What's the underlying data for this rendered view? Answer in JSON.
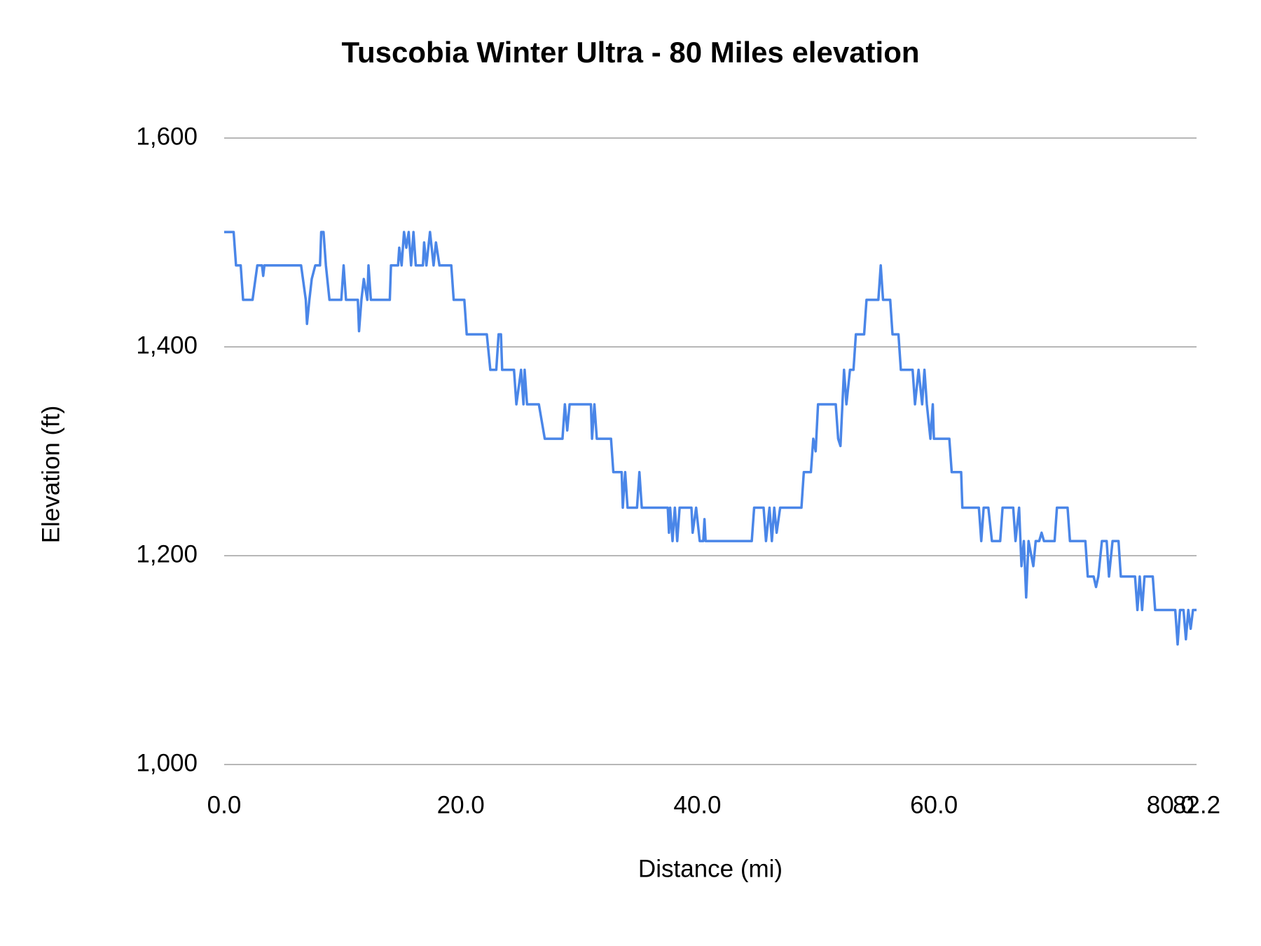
{
  "chart_data": {
    "type": "line",
    "title": "Tuscobia Winter Ultra - 80 Miles elevation",
    "x_label": "Distance (mi)",
    "y_label": "Elevation (ft)",
    "color": "#4a86e8",
    "grid": true,
    "xlim": [
      0,
      82.2
    ],
    "xticks": [
      {
        "value": 0,
        "label": "0.0"
      },
      {
        "value": 20,
        "label": "20.0"
      },
      {
        "value": 40,
        "label": "40.0"
      },
      {
        "value": 60,
        "label": "60.0"
      },
      {
        "value": 80,
        "label": "80.0"
      },
      {
        "value": 82.2,
        "label": "82.2"
      }
    ],
    "ylim": [
      1000,
      1600
    ],
    "yticks": [
      {
        "value": 1000,
        "label": "1,000"
      },
      {
        "value": 1200,
        "label": "1,200"
      },
      {
        "value": 1400,
        "label": "1,400"
      },
      {
        "value": 1600,
        "label": "1,600"
      }
    ],
    "x": [
      0,
      0.8,
      1.0,
      1.4,
      1.6,
      2.4,
      2.8,
      3.2,
      3.3,
      3.4,
      6.5,
      6.9,
      7.0,
      7.2,
      7.4,
      7.7,
      8.1,
      8.2,
      8.4,
      8.6,
      8.9,
      9.9,
      10.1,
      10.3,
      11.3,
      11.4,
      11.6,
      11.8,
      12.1,
      12.2,
      12.4,
      14.0,
      14.1,
      14.7,
      14.8,
      15.0,
      15.2,
      15.4,
      15.6,
      15.8,
      16.0,
      16.2,
      16.8,
      16.9,
      17.1,
      17.4,
      17.7,
      17.9,
      18.2,
      19.2,
      19.4,
      20.3,
      20.5,
      22.2,
      22.5,
      23.0,
      23.2,
      23.4,
      23.5,
      24.5,
      24.7,
      25.1,
      25.3,
      25.4,
      25.6,
      26.6,
      27.1,
      28.6,
      28.8,
      29.0,
      29.2,
      31.0,
      31.1,
      31.3,
      31.5,
      32.7,
      32.9,
      33.6,
      33.7,
      33.9,
      34.1,
      34.9,
      35.1,
      35.3,
      37.5,
      37.6,
      37.7,
      37.9,
      38.1,
      38.3,
      38.5,
      39.5,
      39.6,
      39.9,
      40.2,
      40.5,
      40.6,
      40.7,
      44.6,
      44.8,
      45.6,
      45.8,
      46.1,
      46.3,
      46.5,
      46.7,
      47.0,
      48.8,
      49.0,
      49.6,
      49.8,
      50.0,
      50.2,
      51.7,
      51.9,
      52.1,
      52.4,
      52.6,
      52.9,
      53.2,
      53.4,
      54.1,
      54.3,
      55.3,
      55.5,
      55.7,
      56.3,
      56.5,
      57.0,
      57.2,
      58.2,
      58.4,
      58.7,
      59.0,
      59.2,
      59.4,
      59.7,
      59.9,
      60.0,
      61.3,
      61.5,
      62.3,
      62.4,
      63.8,
      64.0,
      64.2,
      64.6,
      64.9,
      65.6,
      65.8,
      66.7,
      66.9,
      67.2,
      67.4,
      67.6,
      67.8,
      68.0,
      68.4,
      68.6,
      68.9,
      69.1,
      69.3,
      70.2,
      70.4,
      71.3,
      71.5,
      72.8,
      73.0,
      73.5,
      73.7,
      73.9,
      74.2,
      74.6,
      74.8,
      75.1,
      75.6,
      75.8,
      77.0,
      77.2,
      77.4,
      77.6,
      77.8,
      78.5,
      78.7,
      80.4,
      80.6,
      80.8,
      81.1,
      81.3,
      81.5,
      81.7,
      81.9,
      82.2
    ],
    "values": [
      1510,
      1510,
      1478,
      1478,
      1445,
      1445,
      1478,
      1478,
      1468,
      1478,
      1478,
      1445,
      1422,
      1445,
      1465,
      1478,
      1478,
      1510,
      1510,
      1478,
      1445,
      1445,
      1478,
      1445,
      1445,
      1415,
      1445,
      1465,
      1445,
      1478,
      1445,
      1445,
      1478,
      1478,
      1495,
      1478,
      1510,
      1495,
      1510,
      1478,
      1510,
      1478,
      1478,
      1500,
      1478,
      1510,
      1478,
      1500,
      1478,
      1478,
      1445,
      1445,
      1412,
      1412,
      1378,
      1378,
      1412,
      1412,
      1378,
      1378,
      1345,
      1378,
      1345,
      1378,
      1345,
      1345,
      1312,
      1312,
      1345,
      1320,
      1345,
      1345,
      1312,
      1345,
      1312,
      1312,
      1280,
      1280,
      1246,
      1280,
      1246,
      1246,
      1280,
      1246,
      1246,
      1222,
      1246,
      1214,
      1246,
      1214,
      1246,
      1246,
      1222,
      1246,
      1214,
      1214,
      1235,
      1214,
      1214,
      1246,
      1246,
      1214,
      1246,
      1214,
      1246,
      1222,
      1246,
      1246,
      1280,
      1280,
      1312,
      1300,
      1345,
      1345,
      1312,
      1305,
      1378,
      1345,
      1378,
      1378,
      1412,
      1412,
      1445,
      1445,
      1478,
      1445,
      1445,
      1412,
      1412,
      1378,
      1378,
      1345,
      1378,
      1345,
      1378,
      1345,
      1312,
      1345,
      1312,
      1312,
      1280,
      1280,
      1246,
      1246,
      1214,
      1246,
      1246,
      1214,
      1214,
      1246,
      1246,
      1214,
      1246,
      1190,
      1214,
      1160,
      1214,
      1190,
      1214,
      1214,
      1222,
      1214,
      1214,
      1246,
      1246,
      1214,
      1214,
      1180,
      1180,
      1170,
      1180,
      1214,
      1214,
      1180,
      1214,
      1214,
      1180,
      1180,
      1148,
      1180,
      1148,
      1180,
      1180,
      1148,
      1148,
      1115,
      1148,
      1148,
      1120,
      1148,
      1130,
      1148,
      1148
    ]
  }
}
